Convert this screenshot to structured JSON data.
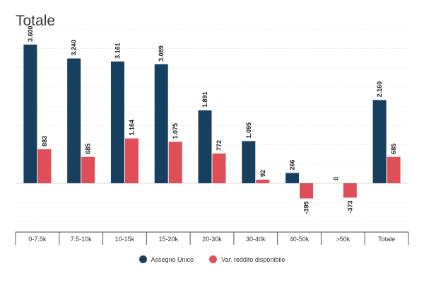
{
  "title": "Totale",
  "chart_data": {
    "type": "bar",
    "title": "Totale",
    "categories": [
      "0-7.5k",
      "7.5-10k",
      "10-15k",
      "15-20k",
      "20-30k",
      "30-40k",
      "40-50k",
      ">50k",
      "Totale"
    ],
    "series": [
      {
        "name": "Assegno Unico",
        "color": "#173f5f",
        "values": [
          3600,
          3240,
          3161,
          3089,
          1891,
          1095,
          266,
          0,
          2160
        ],
        "labels": [
          "3.600",
          "3.240",
          "3.161",
          "3.089",
          "1.891",
          "1.095",
          "266",
          "0",
          "2.160"
        ]
      },
      {
        "name": "Var. reddito disponibile",
        "color": "#e04f58",
        "values": [
          883,
          685,
          1164,
          1075,
          772,
          92,
          -395,
          -373,
          685
        ],
        "labels": [
          "883",
          "685",
          "1.164",
          "1.075",
          "772",
          "92",
          "-395",
          "-373",
          "685"
        ]
      }
    ],
    "ylim": [
      -1400,
      4000
    ],
    "grid": true,
    "legend_position": "bottom-center"
  }
}
